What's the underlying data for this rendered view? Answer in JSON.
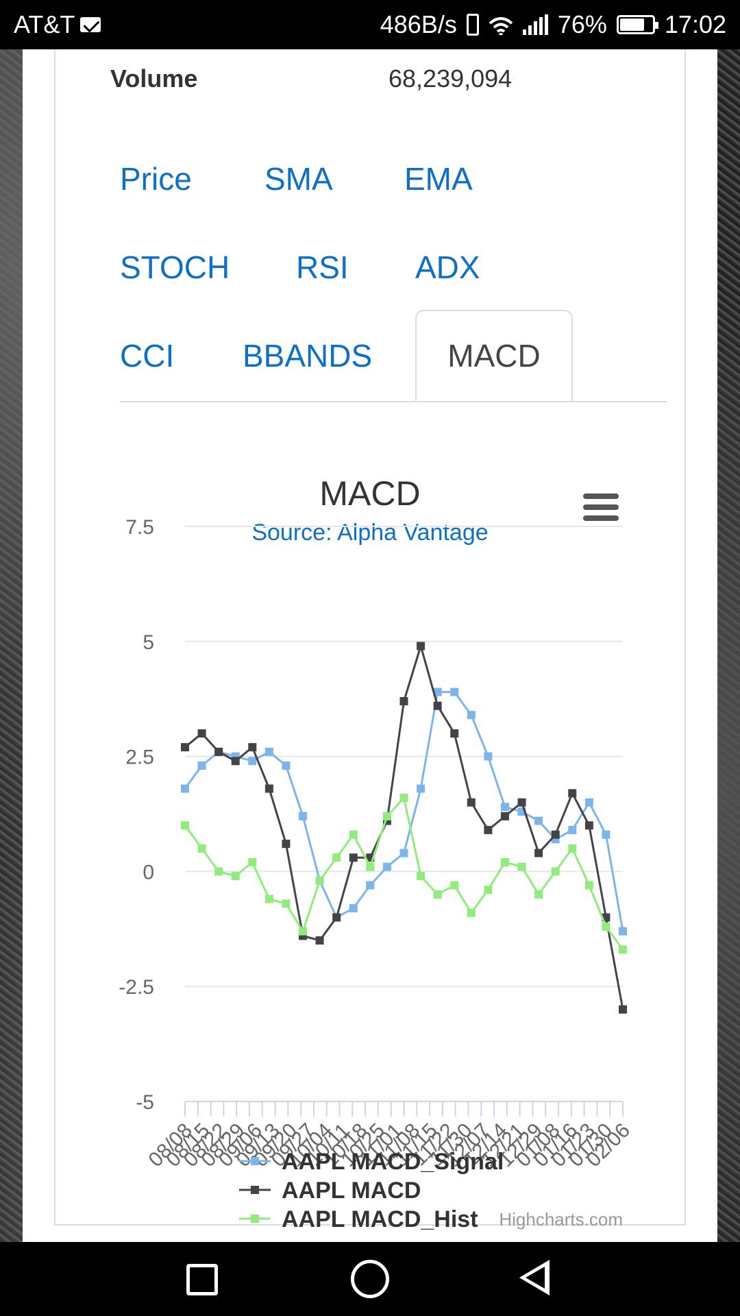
{
  "status_bar": {
    "carrier": "AT&T",
    "net_speed": "486B/s",
    "battery": "76%",
    "time": "17:02"
  },
  "volume": {
    "label": "Volume",
    "value": "68,239,094"
  },
  "tabs": [
    {
      "label": "Price"
    },
    {
      "label": "SMA"
    },
    {
      "label": "EMA"
    },
    {
      "label": "STOCH"
    },
    {
      "label": "RSI"
    },
    {
      "label": "ADX"
    },
    {
      "label": "CCI"
    },
    {
      "label": "BBANDS"
    },
    {
      "label": "MACD",
      "active": true
    }
  ],
  "chart_data": {
    "type": "line",
    "title": "MACD",
    "subtitle": "Source: Alpha Vantage",
    "credits": "Highcharts.com",
    "ylim": [
      -5,
      7.5
    ],
    "yticks": [
      "7.5",
      "5",
      "2.5",
      "0",
      "-2.5",
      "-5"
    ],
    "xticks": [
      "08/08",
      "08/15",
      "08/22",
      "08/29",
      "09/06",
      "09/13",
      "09/20",
      "09/27",
      "10/04",
      "10/11",
      "10/18",
      "10/25",
      "11/01",
      "11/08",
      "11/15",
      "11/22",
      "11/30",
      "12/07",
      "12/14",
      "12/21",
      "12/29",
      "01/08",
      "01/16",
      "01/23",
      "01/30",
      "02/06"
    ],
    "legend_position": "bottom",
    "grid": true,
    "series": [
      {
        "name": "AAPL MACD_Signal",
        "color": "#7cb5ec",
        "values": [
          1.8,
          2.3,
          2.6,
          2.5,
          2.4,
          2.6,
          2.3,
          1.2,
          -0.2,
          -1.0,
          -0.8,
          -0.3,
          0.1,
          0.4,
          1.8,
          3.9,
          3.9,
          3.4,
          2.5,
          1.4,
          1.3,
          1.1,
          0.7,
          0.9,
          1.5,
          0.8,
          -1.3
        ]
      },
      {
        "name": "AAPL MACD",
        "color": "#434348",
        "values": [
          2.7,
          3.0,
          2.6,
          2.4,
          2.7,
          1.8,
          0.6,
          -1.4,
          -1.5,
          -1.0,
          0.3,
          0.3,
          1.1,
          3.7,
          4.9,
          3.6,
          3.0,
          1.5,
          0.9,
          1.2,
          1.5,
          0.4,
          0.8,
          1.7,
          1.0,
          -1.0,
          -3.0
        ]
      },
      {
        "name": "AAPL MACD_Hist",
        "color": "#90ed7d",
        "values": [
          1.0,
          0.5,
          0.0,
          -0.1,
          0.2,
          -0.6,
          -0.7,
          -1.3,
          -0.2,
          0.3,
          0.8,
          0.1,
          1.2,
          1.6,
          -0.1,
          -0.5,
          -0.3,
          -0.9,
          -0.4,
          0.2,
          0.1,
          -0.5,
          0.0,
          0.5,
          -0.3,
          -1.2,
          -1.7
        ]
      }
    ]
  },
  "nav": {
    "back": "back-icon",
    "home": "home-icon",
    "recents": "recents-icon"
  }
}
